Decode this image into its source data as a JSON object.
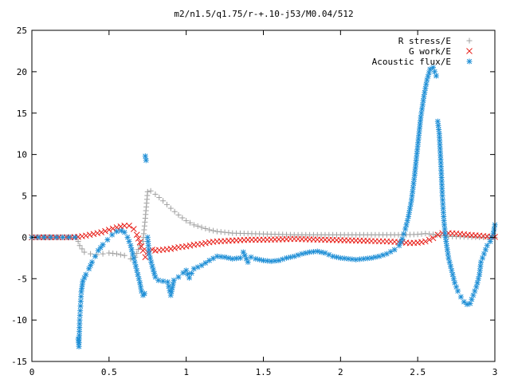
{
  "chart_data": {
    "type": "scatter",
    "title": "m2/n1.5/q1.75/r-+.10-j53/M0.04/512",
    "xlabel": "",
    "ylabel": "",
    "xlim": [
      0,
      3
    ],
    "ylim": [
      -15,
      25
    ],
    "x_ticks": [
      "0",
      "0.5",
      "1",
      "1.5",
      "2",
      "2.5",
      "3"
    ],
    "x_tick_values": [
      0,
      0.5,
      1,
      1.5,
      2,
      2.5,
      3
    ],
    "y_ticks": [
      "-15",
      "-10",
      "-5",
      "0",
      "5",
      "10",
      "15",
      "20",
      "25"
    ],
    "y_tick_values": [
      -15,
      -10,
      -5,
      0,
      5,
      10,
      15,
      20,
      25
    ],
    "grid": false,
    "legend_position": "top-right",
    "series": [
      {
        "name": "R stress/E",
        "marker": "plus",
        "color": "#a0a0a0",
        "points": [
          [
            0.0,
            0.0
          ],
          [
            0.05,
            0.0
          ],
          [
            0.1,
            0.0
          ],
          [
            0.15,
            0.0
          ],
          [
            0.2,
            0.0
          ],
          [
            0.25,
            0.0
          ],
          [
            0.29,
            0.0
          ],
          [
            0.31,
            -1.0
          ],
          [
            0.34,
            -1.8
          ],
          [
            0.38,
            -2.0
          ],
          [
            0.42,
            -2.1
          ],
          [
            0.46,
            -2.0
          ],
          [
            0.5,
            -1.9
          ],
          [
            0.55,
            -2.0
          ],
          [
            0.6,
            -2.2
          ],
          [
            0.64,
            -2.6
          ],
          [
            0.67,
            -2.4
          ],
          [
            0.7,
            -1.0
          ],
          [
            0.72,
            -0.5
          ],
          [
            0.735,
            2.3
          ],
          [
            0.75,
            5.5
          ],
          [
            0.77,
            5.6
          ],
          [
            0.8,
            5.2
          ],
          [
            0.85,
            4.4
          ],
          [
            0.9,
            3.5
          ],
          [
            0.95,
            2.7
          ],
          [
            1.0,
            2.0
          ],
          [
            1.05,
            1.5
          ],
          [
            1.1,
            1.2
          ],
          [
            1.15,
            0.9
          ],
          [
            1.2,
            0.7
          ],
          [
            1.3,
            0.5
          ],
          [
            1.4,
            0.45
          ],
          [
            1.5,
            0.4
          ],
          [
            1.6,
            0.35
          ],
          [
            1.7,
            0.3
          ],
          [
            1.8,
            0.3
          ],
          [
            1.9,
            0.3
          ],
          [
            2.0,
            0.3
          ],
          [
            2.1,
            0.3
          ],
          [
            2.2,
            0.3
          ],
          [
            2.3,
            0.3
          ],
          [
            2.4,
            0.3
          ],
          [
            2.5,
            0.35
          ],
          [
            2.55,
            0.45
          ],
          [
            2.6,
            0.35
          ],
          [
            2.65,
            0.2
          ],
          [
            2.7,
            0.1
          ],
          [
            2.8,
            0.05
          ],
          [
            2.9,
            0.0
          ],
          [
            3.0,
            0.0
          ]
        ]
      },
      {
        "name": "G work/E",
        "marker": "cross",
        "color": "#e8201a",
        "points": [
          [
            0.0,
            0.0
          ],
          [
            0.05,
            0.0
          ],
          [
            0.1,
            0.0
          ],
          [
            0.15,
            0.0
          ],
          [
            0.2,
            0.0
          ],
          [
            0.25,
            0.0
          ],
          [
            0.3,
            0.05
          ],
          [
            0.35,
            0.2
          ],
          [
            0.4,
            0.4
          ],
          [
            0.45,
            0.6
          ],
          [
            0.5,
            0.9
          ],
          [
            0.55,
            1.2
          ],
          [
            0.6,
            1.4
          ],
          [
            0.63,
            1.4
          ],
          [
            0.66,
            1.0
          ],
          [
            0.68,
            0.3
          ],
          [
            0.7,
            -0.6
          ],
          [
            0.72,
            -1.6
          ],
          [
            0.735,
            -2.4
          ],
          [
            0.75,
            -1.8
          ],
          [
            0.78,
            -1.5
          ],
          [
            0.8,
            -1.6
          ],
          [
            0.85,
            -1.5
          ],
          [
            0.9,
            -1.4
          ],
          [
            0.95,
            -1.2
          ],
          [
            1.0,
            -1.1
          ],
          [
            1.05,
            -0.9
          ],
          [
            1.1,
            -0.8
          ],
          [
            1.15,
            -0.6
          ],
          [
            1.2,
            -0.5
          ],
          [
            1.3,
            -0.4
          ],
          [
            1.4,
            -0.3
          ],
          [
            1.5,
            -0.3
          ],
          [
            1.6,
            -0.25
          ],
          [
            1.7,
            -0.2
          ],
          [
            1.8,
            -0.25
          ],
          [
            1.9,
            -0.3
          ],
          [
            2.0,
            -0.35
          ],
          [
            2.1,
            -0.4
          ],
          [
            2.2,
            -0.45
          ],
          [
            2.3,
            -0.5
          ],
          [
            2.4,
            -0.6
          ],
          [
            2.45,
            -0.7
          ],
          [
            2.5,
            -0.65
          ],
          [
            2.55,
            -0.5
          ],
          [
            2.6,
            -0.1
          ],
          [
            2.63,
            0.3
          ],
          [
            2.66,
            0.5
          ],
          [
            2.7,
            0.5
          ],
          [
            2.75,
            0.45
          ],
          [
            2.8,
            0.35
          ],
          [
            2.85,
            0.25
          ],
          [
            2.9,
            0.2
          ],
          [
            2.95,
            0.1
          ],
          [
            3.0,
            0.05
          ]
        ]
      },
      {
        "name": "Acoustic flux/E",
        "marker": "star",
        "color": "#1f8fd6",
        "points": [
          [
            0.0,
            0.0
          ],
          [
            0.04,
            0.0
          ],
          [
            0.08,
            0.0
          ],
          [
            0.12,
            0.0
          ],
          [
            0.16,
            0.0
          ],
          [
            0.2,
            0.0
          ],
          [
            0.24,
            0.0
          ],
          [
            0.28,
            0.0
          ],
          [
            0.3,
            -12.3
          ],
          [
            0.305,
            -13.2
          ],
          [
            0.31,
            -10.0
          ],
          [
            0.315,
            -8.3
          ],
          [
            0.32,
            -6.6
          ],
          [
            0.33,
            -5.3
          ],
          [
            0.35,
            -4.5
          ],
          [
            0.37,
            -3.8
          ],
          [
            0.39,
            -3.0
          ],
          [
            0.41,
            -2.3
          ],
          [
            0.43,
            -1.6
          ],
          [
            0.46,
            -0.9
          ],
          [
            0.49,
            -0.3
          ],
          [
            0.52,
            0.3
          ],
          [
            0.55,
            0.7
          ],
          [
            0.58,
            0.8
          ],
          [
            0.6,
            0.6
          ],
          [
            0.62,
            0.0
          ],
          [
            0.64,
            -1.0
          ],
          [
            0.66,
            -2.5
          ],
          [
            0.68,
            -4.0
          ],
          [
            0.7,
            -5.5
          ],
          [
            0.71,
            -6.5
          ],
          [
            0.72,
            -7.0
          ],
          [
            0.73,
            -6.8
          ],
          [
            0.735,
            9.8
          ],
          [
            0.74,
            9.3
          ],
          [
            0.75,
            0.0
          ],
          [
            0.76,
            -2.0
          ],
          [
            0.78,
            -3.5
          ],
          [
            0.8,
            -4.8
          ],
          [
            0.82,
            -5.2
          ],
          [
            0.85,
            -5.3
          ],
          [
            0.88,
            -5.4
          ],
          [
            0.9,
            -7.0
          ],
          [
            0.92,
            -5.2
          ],
          [
            0.95,
            -4.8
          ],
          [
            0.98,
            -4.3
          ],
          [
            1.0,
            -4.0
          ],
          [
            1.02,
            -4.9
          ],
          [
            1.05,
            -3.8
          ],
          [
            1.1,
            -3.4
          ],
          [
            1.15,
            -2.8
          ],
          [
            1.2,
            -2.3
          ],
          [
            1.25,
            -2.4
          ],
          [
            1.3,
            -2.6
          ],
          [
            1.35,
            -2.5
          ],
          [
            1.37,
            -1.8
          ],
          [
            1.4,
            -3.0
          ],
          [
            1.42,
            -2.4
          ],
          [
            1.45,
            -2.6
          ],
          [
            1.5,
            -2.8
          ],
          [
            1.55,
            -2.9
          ],
          [
            1.6,
            -2.8
          ],
          [
            1.65,
            -2.5
          ],
          [
            1.7,
            -2.3
          ],
          [
            1.75,
            -2.0
          ],
          [
            1.8,
            -1.8
          ],
          [
            1.85,
            -1.7
          ],
          [
            1.9,
            -1.9
          ],
          [
            1.95,
            -2.3
          ],
          [
            2.0,
            -2.5
          ],
          [
            2.05,
            -2.6
          ],
          [
            2.1,
            -2.7
          ],
          [
            2.15,
            -2.6
          ],
          [
            2.2,
            -2.5
          ],
          [
            2.25,
            -2.3
          ],
          [
            2.3,
            -2.0
          ],
          [
            2.35,
            -1.5
          ],
          [
            2.38,
            -1.0
          ],
          [
            2.4,
            -0.2
          ],
          [
            2.42,
            1.0
          ],
          [
            2.44,
            2.5
          ],
          [
            2.46,
            4.5
          ],
          [
            2.48,
            7.5
          ],
          [
            2.5,
            11.0
          ],
          [
            2.52,
            14.5
          ],
          [
            2.54,
            17.0
          ],
          [
            2.56,
            19.0
          ],
          [
            2.58,
            20.3
          ],
          [
            2.6,
            20.5
          ],
          [
            2.62,
            19.5
          ],
          [
            2.63,
            14.0
          ],
          [
            2.64,
            12.5
          ],
          [
            2.65,
            9.0
          ],
          [
            2.66,
            5.0
          ],
          [
            2.67,
            2.0
          ],
          [
            2.68,
            0.0
          ],
          [
            2.7,
            -2.5
          ],
          [
            2.72,
            -4.0
          ],
          [
            2.74,
            -5.5
          ],
          [
            2.76,
            -6.5
          ],
          [
            2.78,
            -7.2
          ],
          [
            2.8,
            -7.8
          ],
          [
            2.82,
            -8.1
          ],
          [
            2.84,
            -8.0
          ],
          [
            2.86,
            -7.0
          ],
          [
            2.88,
            -6.0
          ],
          [
            2.9,
            -4.5
          ],
          [
            2.91,
            -3.0
          ],
          [
            2.93,
            -2.0
          ],
          [
            2.95,
            -1.0
          ],
          [
            2.97,
            -0.5
          ],
          [
            2.99,
            0.5
          ],
          [
            3.0,
            1.5
          ]
        ]
      }
    ]
  }
}
